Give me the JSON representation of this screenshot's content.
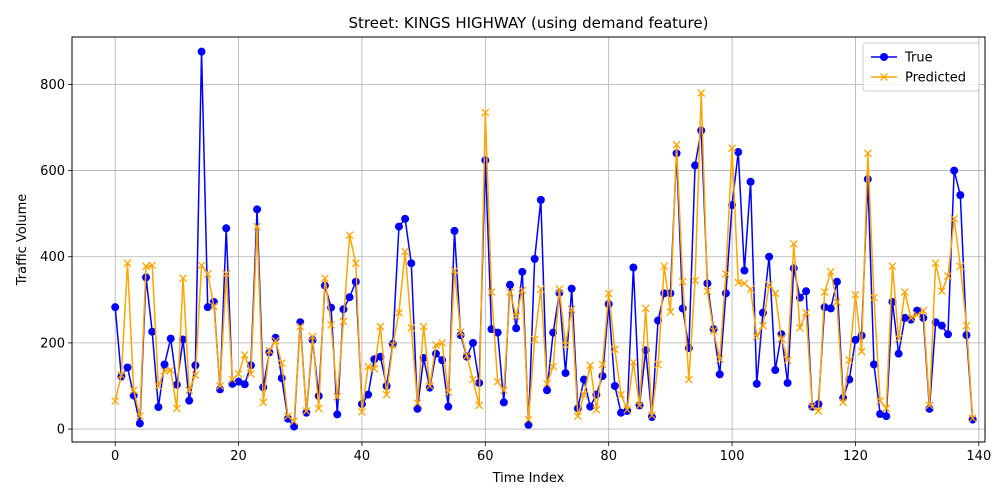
{
  "chart_data": {
    "type": "line",
    "title": "Street: KINGS HIGHWAY (using demand feature)",
    "xlabel": "Time Index",
    "ylabel": "Traffic Volume",
    "xlim": [
      -7,
      141
    ],
    "ylim": [
      -30,
      910
    ],
    "xticks": [
      0,
      20,
      40,
      60,
      80,
      100,
      120,
      140
    ],
    "yticks": [
      0,
      200,
      400,
      600,
      800
    ],
    "grid": true,
    "legend_position": "top-right",
    "colors": {
      "true": "#0000ff",
      "predicted": "#ffa500"
    },
    "series": [
      {
        "name": "True",
        "marker": "circle",
        "values": [
          283,
          122,
          143,
          78,
          13,
          352,
          226,
          51,
          150,
          210,
          103,
          208,
          66,
          148,
          876,
          283,
          295,
          92,
          466,
          105,
          110,
          104,
          148,
          510,
          97,
          178,
          212,
          118,
          24,
          6,
          248,
          38,
          207,
          77,
          333,
          282,
          34,
          278,
          306,
          342,
          58,
          80,
          162,
          168,
          100,
          198,
          470,
          488,
          385,
          47,
          165,
          96,
          175,
          160,
          52,
          460,
          218,
          168,
          200,
          107,
          624,
          232,
          224,
          62,
          335,
          234,
          365,
          10,
          395,
          532,
          90,
          224,
          316,
          130,
          326,
          48,
          115,
          52,
          80,
          123,
          290,
          100,
          38,
          42,
          375,
          55,
          183,
          28,
          252,
          315,
          315,
          640,
          280,
          188,
          612,
          693,
          338,
          232,
          127,
          315,
          520,
          643,
          368,
          574,
          105,
          270,
          400,
          137,
          220,
          107,
          373,
          305,
          320,
          52,
          58,
          283,
          280,
          342,
          72,
          115,
          207,
          217,
          580,
          150,
          35,
          30,
          295,
          175,
          258,
          254,
          275,
          258,
          47,
          248,
          240,
          220,
          600,
          543,
          218,
          22
        ]
      },
      {
        "name": "Predicted",
        "marker": "x",
        "values": [
          65,
          125,
          385,
          90,
          30,
          378,
          380,
          100,
          135,
          137,
          48,
          350,
          90,
          125,
          380,
          360,
          285,
          100,
          360,
          115,
          128,
          172,
          128,
          470,
          62,
          182,
          205,
          153,
          30,
          18,
          238,
          42,
          215,
          48,
          350,
          242,
          75,
          250,
          450,
          385,
          40,
          145,
          140,
          238,
          80,
          195,
          270,
          412,
          235,
          60,
          238,
          100,
          195,
          200,
          85,
          368,
          225,
          170,
          115,
          55,
          735,
          318,
          110,
          90,
          318,
          262,
          322,
          22,
          208,
          325,
          105,
          145,
          325,
          195,
          278,
          30,
          80,
          148,
          45,
          150,
          315,
          185,
          80,
          45,
          155,
          55,
          280,
          32,
          150,
          378,
          272,
          660,
          342,
          115,
          345,
          780,
          320,
          228,
          162,
          360,
          652,
          340,
          338,
          325,
          215,
          240,
          335,
          315,
          210,
          160,
          430,
          235,
          270,
          52,
          42,
          318,
          365,
          295,
          62,
          160,
          312,
          180,
          640,
          305,
          65,
          48,
          378,
          210,
          318,
          258,
          265,
          275,
          55,
          385,
          320,
          355,
          488,
          378,
          240,
          25
        ]
      }
    ]
  }
}
